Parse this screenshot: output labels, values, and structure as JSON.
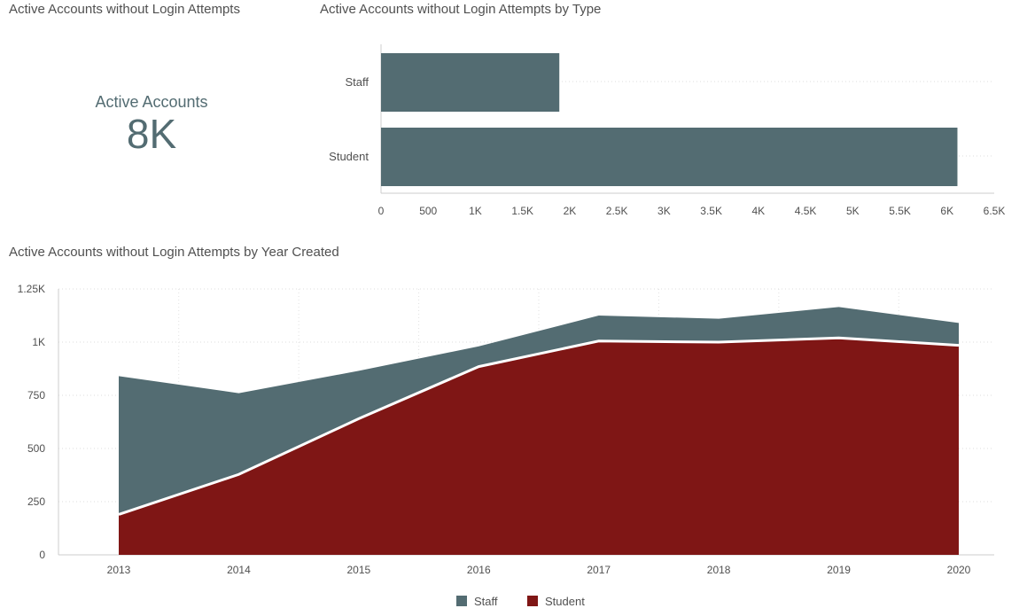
{
  "kpi": {
    "panel_title": "Active Accounts without Login Attempts",
    "label": "Active Accounts",
    "value": "8K"
  },
  "chart_data": [
    {
      "type": "bar",
      "orientation": "horizontal",
      "title": "Active Accounts without Login Attempts by Type",
      "categories": [
        "Staff",
        "Student"
      ],
      "values": [
        1890,
        6110
      ],
      "xlim": [
        0,
        6500
      ],
      "xticks": [
        0,
        500,
        1000,
        1500,
        2000,
        2500,
        3000,
        3500,
        4000,
        4500,
        5000,
        5500,
        6000,
        6500
      ],
      "xtick_labels": [
        "0",
        "500",
        "1K",
        "1.5K",
        "2K",
        "2.5K",
        "3K",
        "3.5K",
        "4K",
        "4.5K",
        "5K",
        "5.5K",
        "6K",
        "6.5K"
      ],
      "grid": true,
      "color": "#536c72"
    },
    {
      "type": "area",
      "stacked": true,
      "title": "Active Accounts without Login Attempts by Year Created",
      "x": [
        "2013",
        "2014",
        "2015",
        "2016",
        "2017",
        "2018",
        "2019",
        "2020"
      ],
      "series": [
        {
          "name": "Student",
          "color": "#7f1615",
          "values": [
            190,
            378,
            640,
            885,
            1005,
            1000,
            1020,
            985
          ]
        },
        {
          "name": "Staff",
          "color": "#536c72",
          "values": [
            650,
            382,
            225,
            95,
            120,
            110,
            145,
            105
          ]
        }
      ],
      "ylim": [
        0,
        1250
      ],
      "yticks": [
        0,
        250,
        500,
        750,
        1000,
        1250
      ],
      "ytick_labels": [
        "0",
        "250",
        "500",
        "750",
        "1K",
        "1.25K"
      ],
      "legend": {
        "placement": "bottom",
        "entries": [
          "Staff",
          "Student"
        ]
      },
      "grid": true
    }
  ]
}
